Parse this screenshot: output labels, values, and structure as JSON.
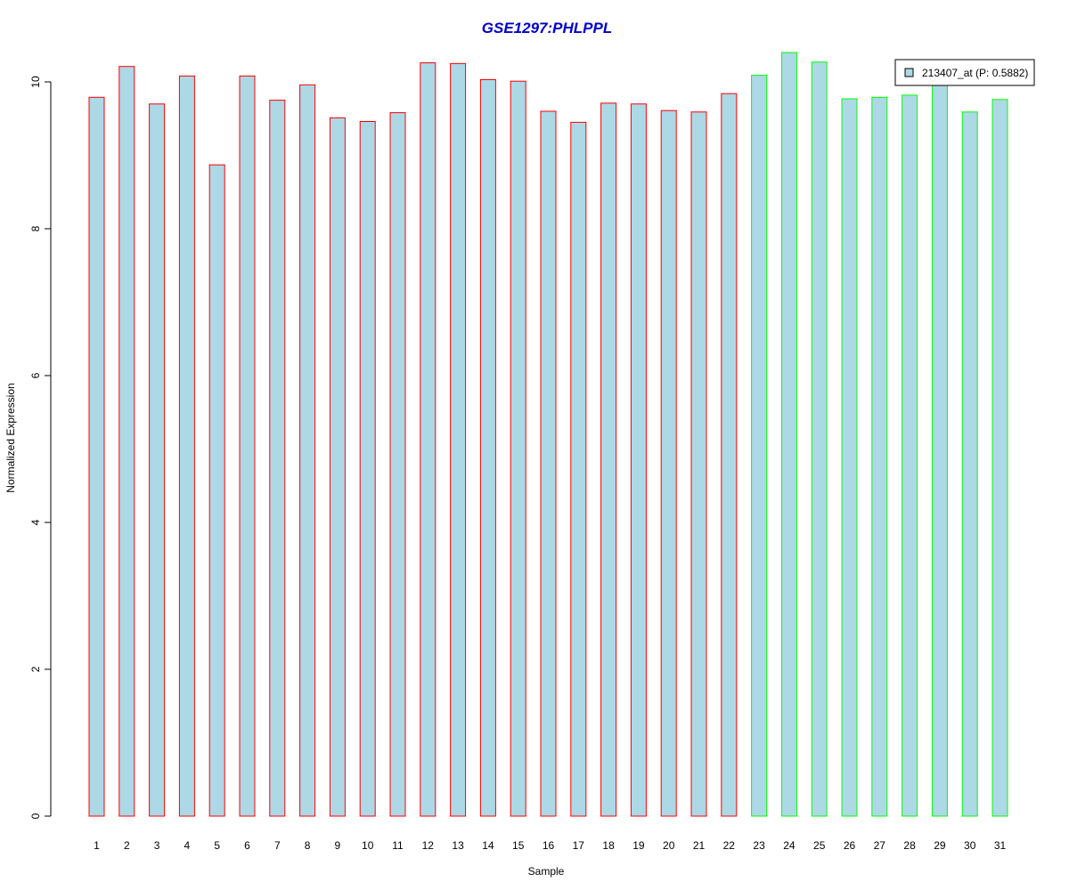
{
  "chart_data": {
    "type": "bar",
    "title": "GSE1297:PHLPPL",
    "xlabel": "Sample",
    "ylabel": "Normalized Expression",
    "categories": [
      "1",
      "2",
      "3",
      "4",
      "5",
      "6",
      "7",
      "8",
      "9",
      "10",
      "11",
      "12",
      "13",
      "14",
      "15",
      "16",
      "17",
      "18",
      "19",
      "20",
      "21",
      "22",
      "23",
      "24",
      "25",
      "26",
      "27",
      "28",
      "29",
      "30",
      "31"
    ],
    "series": [
      {
        "name": "213407_at (P: 0.5882)",
        "values": [
          9.79,
          10.21,
          9.7,
          10.08,
          8.87,
          10.08,
          9.75,
          9.96,
          9.51,
          9.46,
          9.58,
          10.26,
          10.25,
          10.03,
          10.01,
          9.6,
          9.45,
          9.71,
          9.7,
          9.61,
          9.59,
          9.84,
          10.09,
          10.4,
          10.27,
          9.77,
          9.79,
          9.82,
          9.99,
          9.59,
          9.76
        ]
      }
    ],
    "ylim": [
      0,
      10.5
    ],
    "yticks": [
      0,
      2,
      4,
      6,
      8,
      10
    ],
    "grid": false,
    "legend_position": "top-right",
    "group_split_after": 22,
    "colors": {
      "bar_fill": "#add8e6",
      "group1_border": "#ff0000",
      "group2_border": "#00ff00",
      "title": "#0000cc",
      "axis": "#000000"
    }
  }
}
